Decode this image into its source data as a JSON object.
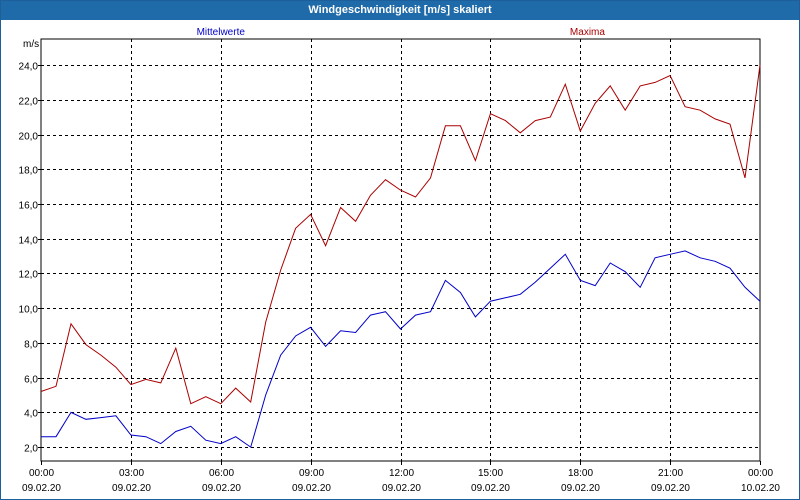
{
  "window": {
    "title": "Windgeschwindigkeit [m/s] skaliert"
  },
  "chart_data": {
    "type": "line",
    "title": "Windgeschwindigkeit [m/s] skaliert",
    "ylabel": "m/s",
    "ylim": [
      1.2,
      25.5
    ],
    "yticks": [
      2.0,
      4.0,
      6.0,
      8.0,
      10.0,
      12.0,
      14.0,
      16.0,
      18.0,
      20.0,
      22.0,
      24.0
    ],
    "ytick_labels": [
      "2,0",
      "4,0",
      "6,0",
      "8,0",
      "10,0",
      "12,0",
      "14,0",
      "16,0",
      "18,0",
      "20,0",
      "22,0",
      "24,0"
    ],
    "xlim": [
      "09.02.20 00:00",
      "10.02.20 00:00"
    ],
    "xticks": [
      {
        "time": "00:00",
        "date": "09.02.20"
      },
      {
        "time": "03:00",
        "date": "09.02.20"
      },
      {
        "time": "06:00",
        "date": "09.02.20"
      },
      {
        "time": "09:00",
        "date": "09.02.20"
      },
      {
        "time": "12:00",
        "date": "09.02.20"
      },
      {
        "time": "15:00",
        "date": "09.02.20"
      },
      {
        "time": "18:00",
        "date": "09.02.20"
      },
      {
        "time": "21:00",
        "date": "09.02.20"
      },
      {
        "time": "00:00",
        "date": "10.02.20"
      }
    ],
    "grid": true,
    "colors": {
      "mittelwerte": "#0000c8",
      "maxima": "#aa0000",
      "title_bar": "#1f6aa9"
    },
    "series": [
      {
        "name": "Mittelwerte",
        "color": "#0000c8",
        "x_hours": [
          0,
          0.5,
          1,
          1.5,
          2,
          2.5,
          3,
          3.5,
          4,
          4.5,
          5,
          5.5,
          6,
          6.5,
          7,
          7.5,
          8,
          8.5,
          9,
          9.5,
          10,
          10.5,
          11,
          11.5,
          12,
          12.5,
          13,
          13.5,
          14,
          14.5,
          15,
          15.5,
          16,
          16.5,
          17,
          17.5,
          18,
          18.5,
          19,
          19.5,
          20,
          20.5,
          21,
          21.5,
          22,
          22.5,
          23,
          23.5,
          24
        ],
        "values": [
          2.6,
          2.6,
          4.0,
          3.6,
          3.7,
          3.8,
          2.7,
          2.6,
          2.2,
          2.9,
          3.2,
          2.4,
          2.2,
          2.6,
          2.0,
          5.0,
          7.3,
          8.4,
          8.9,
          7.8,
          8.7,
          8.6,
          9.6,
          9.8,
          8.8,
          9.6,
          9.8,
          11.6,
          10.9,
          9.5,
          10.4,
          10.6,
          10.8,
          11.5,
          12.3,
          13.1,
          11.6,
          11.3,
          12.6,
          12.1,
          11.2,
          12.9,
          13.1,
          13.3,
          12.9,
          12.7,
          12.3,
          11.2,
          10.4
        ]
      },
      {
        "name": "Maxima",
        "color": "#aa0000",
        "x_hours": [
          0,
          0.5,
          1,
          1.5,
          2,
          2.5,
          3,
          3.5,
          4,
          4.5,
          5,
          5.5,
          6,
          6.5,
          7,
          7.5,
          8,
          8.5,
          9,
          9.5,
          10,
          10.5,
          11,
          11.5,
          12,
          12.5,
          13,
          13.5,
          14,
          14.5,
          15,
          15.5,
          16,
          16.5,
          17,
          17.5,
          18,
          18.5,
          19,
          19.5,
          20,
          20.5,
          21,
          21.5,
          22,
          22.5,
          23,
          23.5,
          24
        ],
        "values": [
          5.2,
          5.5,
          9.1,
          7.9,
          7.3,
          6.6,
          5.6,
          5.9,
          5.7,
          7.7,
          4.5,
          4.9,
          4.5,
          5.4,
          4.6,
          9.2,
          12.2,
          14.6,
          15.4,
          13.6,
          15.8,
          15.0,
          16.5,
          17.4,
          16.8,
          16.4,
          17.5,
          20.5,
          20.5,
          18.5,
          21.2,
          20.8,
          20.1,
          20.8,
          21.0,
          22.9,
          20.2,
          21.8,
          22.8,
          21.4,
          22.8,
          23.0,
          23.4,
          21.6,
          21.4,
          20.9,
          20.6,
          17.5,
          24.0
        ]
      }
    ]
  }
}
